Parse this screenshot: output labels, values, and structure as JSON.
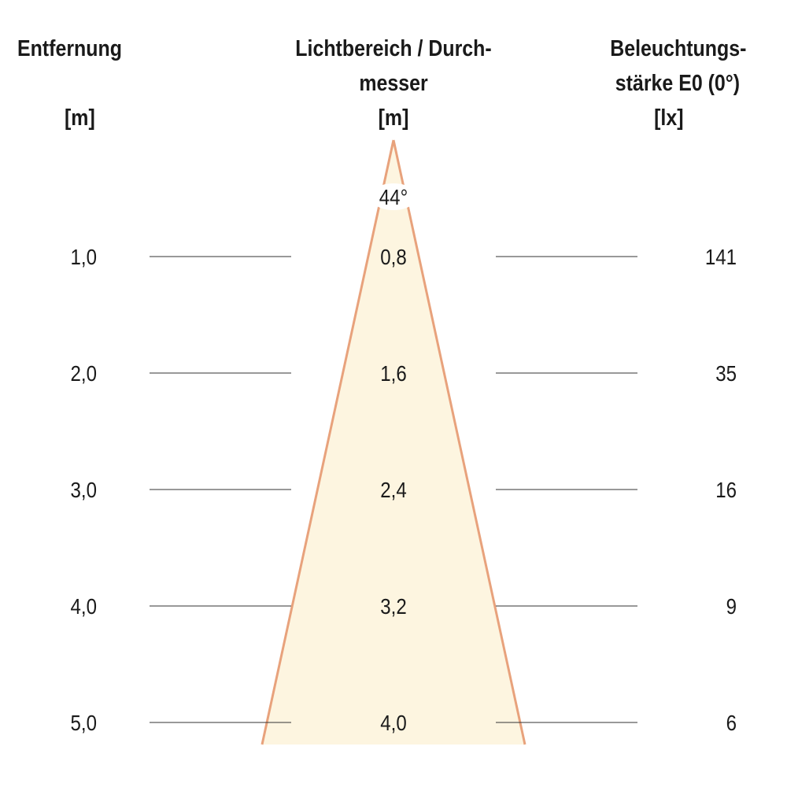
{
  "headers": {
    "distance_line1": "Entfernung",
    "distance_unit": "[m]",
    "diameter_line1": "Lichtbereich / Durch-",
    "diameter_line2": "messer",
    "diameter_unit": "[m]",
    "illuminance_line1": "Beleuchtungs-",
    "illuminance_line2": "stärke E0 (0°)",
    "illuminance_unit": "[lx]"
  },
  "beam_angle": "44°",
  "rows": [
    {
      "distance": "1,0",
      "diameter": "0,8",
      "illuminance": "141"
    },
    {
      "distance": "2,0",
      "diameter": "1,6",
      "illuminance": "35"
    },
    {
      "distance": "3,0",
      "diameter": "2,4",
      "illuminance": "16"
    },
    {
      "distance": "4,0",
      "diameter": "3,2",
      "illuminance": "9"
    },
    {
      "distance": "5,0",
      "diameter": "4,0",
      "illuminance": "6"
    }
  ],
  "colors": {
    "beam_fill": "#fdf5e0",
    "beam_edge": "#e8a27c",
    "line": "#333333"
  }
}
